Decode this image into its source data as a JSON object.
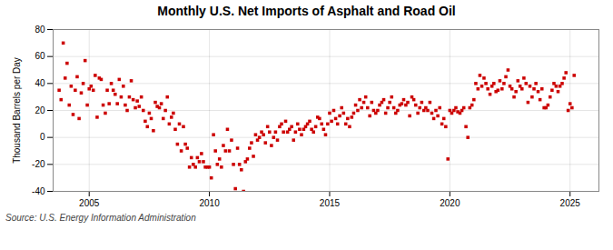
{
  "chart_data": {
    "type": "scatter",
    "title": "Monthly U.S. Net Imports of Asphalt and Road Oil",
    "ylabel": "Thousand Barrels per Day",
    "annotation": "Source: U.S. Energy Information Administration",
    "color": "#cc0000",
    "marker": "square",
    "grid": true,
    "xlim": [
      2003.5,
      2026.2
    ],
    "xticks": [
      2005,
      2010,
      2015,
      2020,
      2025
    ],
    "ylim": [
      -40,
      80
    ],
    "yticks": [
      -40,
      -20,
      0,
      20,
      40,
      60,
      80
    ],
    "x": [
      2003.75,
      2003.83,
      2003.92,
      2004.0,
      2004.08,
      2004.17,
      2004.25,
      2004.33,
      2004.42,
      2004.5,
      2004.58,
      2004.67,
      2004.75,
      2004.83,
      2004.92,
      2005.0,
      2005.08,
      2005.17,
      2005.25,
      2005.33,
      2005.42,
      2005.5,
      2005.58,
      2005.67,
      2005.75,
      2005.83,
      2005.92,
      2006.0,
      2006.08,
      2006.17,
      2006.25,
      2006.33,
      2006.42,
      2006.5,
      2006.58,
      2006.67,
      2006.75,
      2006.83,
      2006.92,
      2007.0,
      2007.08,
      2007.17,
      2007.25,
      2007.33,
      2007.42,
      2007.5,
      2007.58,
      2007.67,
      2007.75,
      2007.83,
      2007.92,
      2008.0,
      2008.08,
      2008.17,
      2008.25,
      2008.33,
      2008.42,
      2008.5,
      2008.58,
      2008.67,
      2008.75,
      2008.83,
      2008.92,
      2009.0,
      2009.08,
      2009.17,
      2009.25,
      2009.33,
      2009.42,
      2009.5,
      2009.58,
      2009.67,
      2009.75,
      2009.83,
      2009.92,
      2010.0,
      2010.08,
      2010.17,
      2010.25,
      2010.33,
      2010.42,
      2010.5,
      2010.58,
      2010.67,
      2010.75,
      2010.83,
      2010.92,
      2011.0,
      2011.08,
      2011.17,
      2011.25,
      2011.33,
      2011.42,
      2011.5,
      2011.58,
      2011.67,
      2011.75,
      2011.83,
      2011.92,
      2012.0,
      2012.08,
      2012.17,
      2012.25,
      2012.33,
      2012.42,
      2012.5,
      2012.58,
      2012.67,
      2012.75,
      2012.83,
      2012.92,
      2013.0,
      2013.08,
      2013.17,
      2013.25,
      2013.33,
      2013.42,
      2013.5,
      2013.58,
      2013.67,
      2013.75,
      2013.83,
      2013.92,
      2014.0,
      2014.08,
      2014.17,
      2014.25,
      2014.33,
      2014.42,
      2014.5,
      2014.58,
      2014.67,
      2014.75,
      2014.83,
      2014.92,
      2015.0,
      2015.08,
      2015.17,
      2015.25,
      2015.33,
      2015.42,
      2015.5,
      2015.58,
      2015.67,
      2015.75,
      2015.83,
      2015.92,
      2016.0,
      2016.08,
      2016.17,
      2016.25,
      2016.33,
      2016.42,
      2016.5,
      2016.58,
      2016.67,
      2016.75,
      2016.83,
      2016.92,
      2017.0,
      2017.08,
      2017.17,
      2017.25,
      2017.33,
      2017.42,
      2017.5,
      2017.58,
      2017.67,
      2017.75,
      2017.83,
      2017.92,
      2018.0,
      2018.08,
      2018.17,
      2018.25,
      2018.33,
      2018.42,
      2018.5,
      2018.58,
      2018.67,
      2018.75,
      2018.83,
      2018.92,
      2019.0,
      2019.08,
      2019.17,
      2019.25,
      2019.33,
      2019.42,
      2019.5,
      2019.58,
      2019.67,
      2019.75,
      2019.83,
      2019.92,
      2020.0,
      2020.08,
      2020.17,
      2020.25,
      2020.33,
      2020.42,
      2020.5,
      2020.58,
      2020.67,
      2020.75,
      2020.83,
      2020.92,
      2021.0,
      2021.08,
      2021.17,
      2021.25,
      2021.33,
      2021.42,
      2021.5,
      2021.58,
      2021.67,
      2021.75,
      2021.83,
      2021.92,
      2022.0,
      2022.08,
      2022.17,
      2022.25,
      2022.33,
      2022.42,
      2022.5,
      2022.58,
      2022.67,
      2022.75,
      2022.83,
      2022.92,
      2023.0,
      2023.08,
      2023.17,
      2023.25,
      2023.33,
      2023.42,
      2023.5,
      2023.58,
      2023.67,
      2023.75,
      2023.83,
      2023.92,
      2024.0,
      2024.08,
      2024.17,
      2024.25,
      2024.33,
      2024.42,
      2024.5,
      2024.58,
      2024.67,
      2024.75,
      2024.83,
      2024.92,
      2025.0,
      2025.08,
      2025.17
    ],
    "values": [
      35,
      28,
      70,
      44,
      55,
      24,
      38,
      17,
      35,
      45,
      14,
      33,
      40,
      57,
      24,
      36,
      38,
      35,
      46,
      15,
      44,
      43,
      24,
      18,
      35,
      25,
      40,
      35,
      32,
      25,
      43,
      30,
      38,
      24,
      20,
      30,
      42,
      28,
      22,
      27,
      23,
      30,
      20,
      12,
      8,
      18,
      14,
      5,
      26,
      23,
      22,
      25,
      14,
      20,
      30,
      10,
      15,
      18,
      6,
      -5,
      10,
      -10,
      8,
      -5,
      -8,
      -22,
      -15,
      -20,
      -22,
      -15,
      -18,
      -12,
      -18,
      -22,
      -22,
      -22,
      -30,
      2,
      -10,
      -20,
      -16,
      -22,
      -6,
      -10,
      6,
      -10,
      -2,
      -20,
      -38,
      -8,
      -20,
      -24,
      -40,
      -18,
      -16,
      -8,
      -4,
      -14,
      2,
      -2,
      0,
      4,
      2,
      -4,
      8,
      4,
      -6,
      0,
      4,
      -2,
      8,
      10,
      4,
      12,
      4,
      6,
      8,
      -2,
      4,
      10,
      6,
      2,
      6,
      8,
      10,
      12,
      6,
      4,
      8,
      15,
      14,
      10,
      6,
      2,
      10,
      18,
      12,
      20,
      14,
      10,
      16,
      22,
      18,
      10,
      14,
      8,
      15,
      18,
      24,
      20,
      28,
      22,
      26,
      30,
      22,
      16,
      26,
      20,
      18,
      20,
      24,
      26,
      28,
      18,
      22,
      26,
      30,
      22,
      18,
      20,
      24,
      25,
      28,
      24,
      26,
      16,
      30,
      28,
      24,
      18,
      22,
      26,
      20,
      22,
      20,
      26,
      18,
      14,
      20,
      16,
      22,
      10,
      14,
      8,
      -16,
      20,
      18,
      20,
      22,
      19,
      18,
      20,
      22,
      8,
      0,
      22,
      24,
      28,
      40,
      36,
      46,
      38,
      44,
      40,
      36,
      32,
      38,
      40,
      34,
      35,
      42,
      36,
      40,
      45,
      50,
      38,
      36,
      30,
      34,
      42,
      38,
      36,
      44,
      40,
      26,
      38,
      30,
      36,
      40,
      34,
      28,
      36,
      22,
      22,
      24,
      30,
      35,
      40,
      38,
      34,
      38,
      40,
      44,
      48,
      20,
      25,
      22,
      46
    ]
  }
}
